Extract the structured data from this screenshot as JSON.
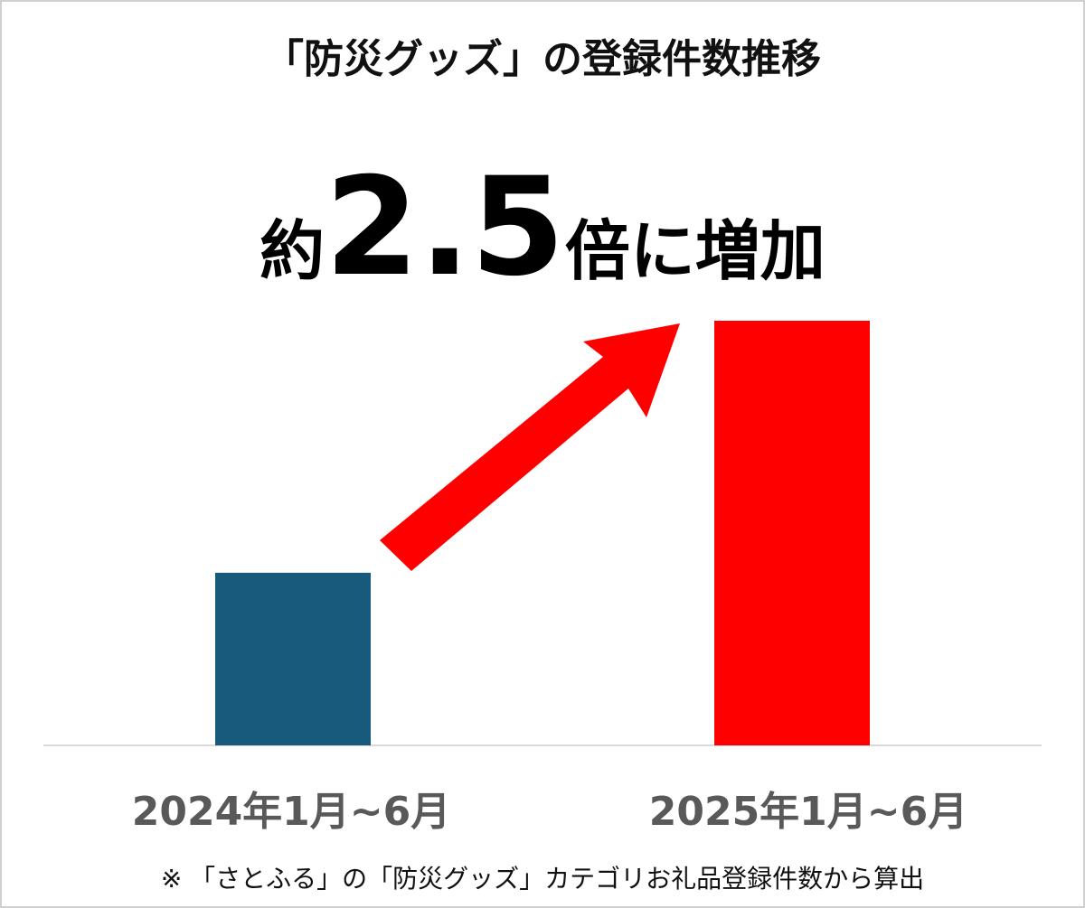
{
  "chart_data": {
    "type": "bar",
    "title": "「防災グッズ」の登録件数推移",
    "headline": [
      "約",
      "2.5",
      "倍に増加"
    ],
    "footnote": "※ 「さとふる」の「防災グッズ」カテゴリお礼品登録件数から算出",
    "categories": [
      "2024年1月~6月",
      "2025年1月~6月"
    ],
    "values": [
      1,
      2.46
    ],
    "colors": [
      "#175a7c",
      "#ff0000"
    ],
    "ylim": [
      0,
      2.46
    ]
  }
}
